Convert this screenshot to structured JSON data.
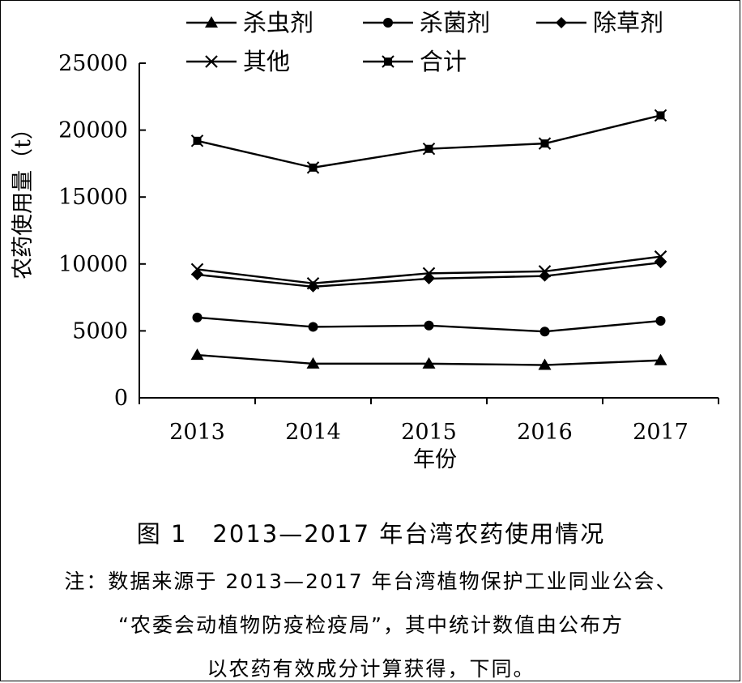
{
  "chart_data": {
    "type": "line",
    "categories": [
      "2013",
      "2014",
      "2015",
      "2016",
      "2017"
    ],
    "xlabel": "年份",
    "ylabel": "农药使用量（t）",
    "ylim": [
      0,
      25000
    ],
    "yticks": [
      "0",
      "5000",
      "10000",
      "15000",
      "20000",
      "25000"
    ],
    "grid": false,
    "legend_position": "top",
    "series": [
      {
        "name": "杀虫剂",
        "marker": "triangle",
        "values": [
          3200,
          2550,
          2550,
          2450,
          2800
        ]
      },
      {
        "name": "杀菌剂",
        "marker": "circle",
        "values": [
          6000,
          5300,
          5400,
          4950,
          5750
        ]
      },
      {
        "name": "除草剂",
        "marker": "diamond",
        "values": [
          9200,
          8300,
          8900,
          9100,
          10100
        ]
      },
      {
        "name": "其他",
        "marker": "x",
        "values": [
          9600,
          8550,
          9300,
          9450,
          10550
        ]
      },
      {
        "name": "合计",
        "marker": "asterisk",
        "values": [
          19200,
          17200,
          18600,
          19000,
          21100
        ]
      }
    ],
    "line_color": "#000000"
  },
  "caption": {
    "title": "图 1　2013—2017 年台湾农药使用情况",
    "note_line1": "注：数据来源于 2013—2017 年台湾植物保护工业同业公会、",
    "note_line2": "“农委会动植物防疫检疫局”，其中统计数值由公布方",
    "note_line3": "以农药有效成分计算获得，下同。"
  }
}
